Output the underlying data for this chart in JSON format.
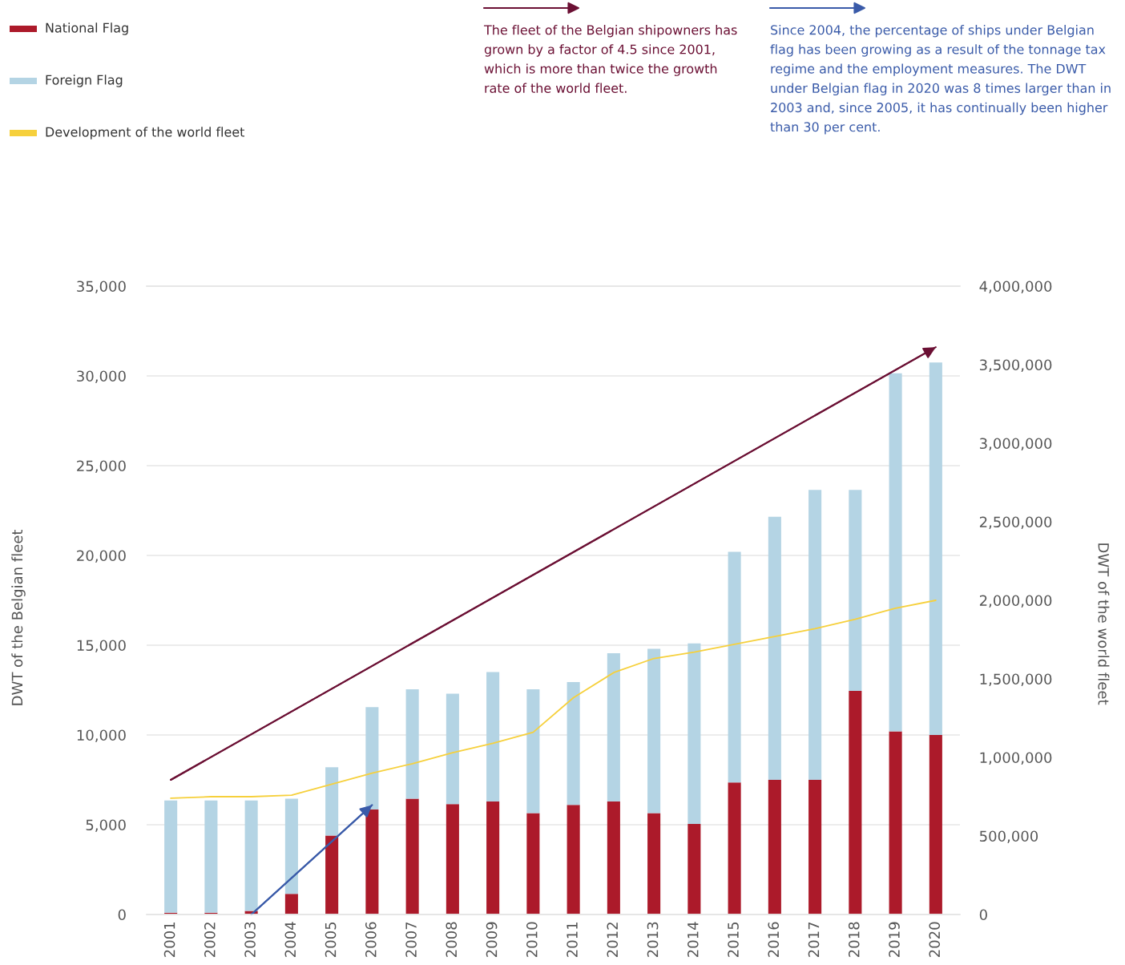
{
  "chart_data": {
    "type": "bar",
    "stacked": true,
    "x": [
      2001,
      2002,
      2003,
      2004,
      2005,
      2006,
      2007,
      2008,
      2009,
      2010,
      2011,
      2012,
      2013,
      2014,
      2015,
      2016,
      2017,
      2018,
      2019,
      2020
    ],
    "xlim": [
      2000.4,
      2020.6
    ],
    "xticks": [
      2001,
      2002,
      2003,
      2004,
      2005,
      2006,
      2007,
      2008,
      2009,
      2010,
      2011,
      2012,
      2013,
      2014,
      2015,
      2016,
      2017,
      2018,
      2019,
      2020
    ],
    "ylabel": "DWT of the Belgian fleet",
    "y2label": "DWT of the world fleet",
    "series": [
      {
        "name": "National Flag",
        "color": "#ac1a2a",
        "values": [
          100,
          100,
          200,
          1150,
          4400,
          5850,
          6450,
          6150,
          6300,
          5650,
          6100,
          6300,
          5650,
          5050,
          7350,
          7500,
          7500,
          12450,
          10200,
          10000
        ]
      },
      {
        "name": "Foreign Flag",
        "color": "#b4d4e4",
        "values": [
          6250,
          6250,
          6150,
          5300,
          3800,
          5700,
          6100,
          6150,
          7200,
          6900,
          6850,
          8250,
          9150,
          10050,
          12850,
          14650,
          16150,
          11200,
          19950,
          20750
        ]
      },
      {
        "name": "Development of the world fleet",
        "type": "line",
        "axis": "y2",
        "color": "#f6d03c",
        "values": [
          740000,
          750000,
          750000,
          760000,
          830000,
          900000,
          960000,
          1030000,
          1090000,
          1160000,
          1380000,
          1540000,
          1630000,
          1670000,
          1720000,
          1770000,
          1820000,
          1880000,
          1950000,
          2000000
        ]
      },
      {
        "name": "The fleet of the Belgian shipowners has grown by a factor of 4.5 since 2001, which is more than twice the growth rate of the world fleet.",
        "type": "line",
        "color": "#6b1034",
        "x": [
          2001,
          2020
        ],
        "values": [
          7500,
          31600
        ]
      },
      {
        "name": "Since 2004, the percentage of ships under Belgian flag has been growing as a result of the tonnage tax regime and the employment measures. The DWT under Belgian flag in 2020 was 8 times larger than in 2003 and, since 2005, it has continually been higher than 30 per cent.",
        "type": "line",
        "color": "#3a5ba9",
        "x": [
          2003,
          2006
        ],
        "values": [
          0,
          6100
        ]
      }
    ],
    "ylim": [
      0,
      35000
    ],
    "yticks": [
      0,
      {
        "value": 5000,
        "label": "5,000"
      },
      {
        "value": 10000,
        "label": "10,000"
      },
      {
        "value": 15000,
        "label": "15,000"
      },
      {
        "value": 20000,
        "label": "20,000"
      },
      {
        "value": 25000,
        "label": "25,000"
      },
      {
        "value": 30000,
        "label": "30,000"
      },
      {
        "value": 35000,
        "label": "35,000"
      }
    ],
    "y2lim": [
      0,
      4000000
    ],
    "y2ticks": [
      0,
      {
        "value": 500000,
        "label": "500,000"
      },
      {
        "value": 1000000,
        "label": "1,000,000"
      },
      {
        "value": 1500000,
        "label": "1,500,000"
      },
      {
        "value": 2000000,
        "label": "2,000,000"
      },
      {
        "value": 2500000,
        "label": "2,500,000"
      },
      {
        "value": 3000000,
        "label": "3,000,000"
      },
      {
        "value": 3500000,
        "label": "3,500,000"
      },
      {
        "value": 4000000,
        "label": "4,000,000"
      }
    ],
    "grid": "y",
    "legend": "top"
  }
}
